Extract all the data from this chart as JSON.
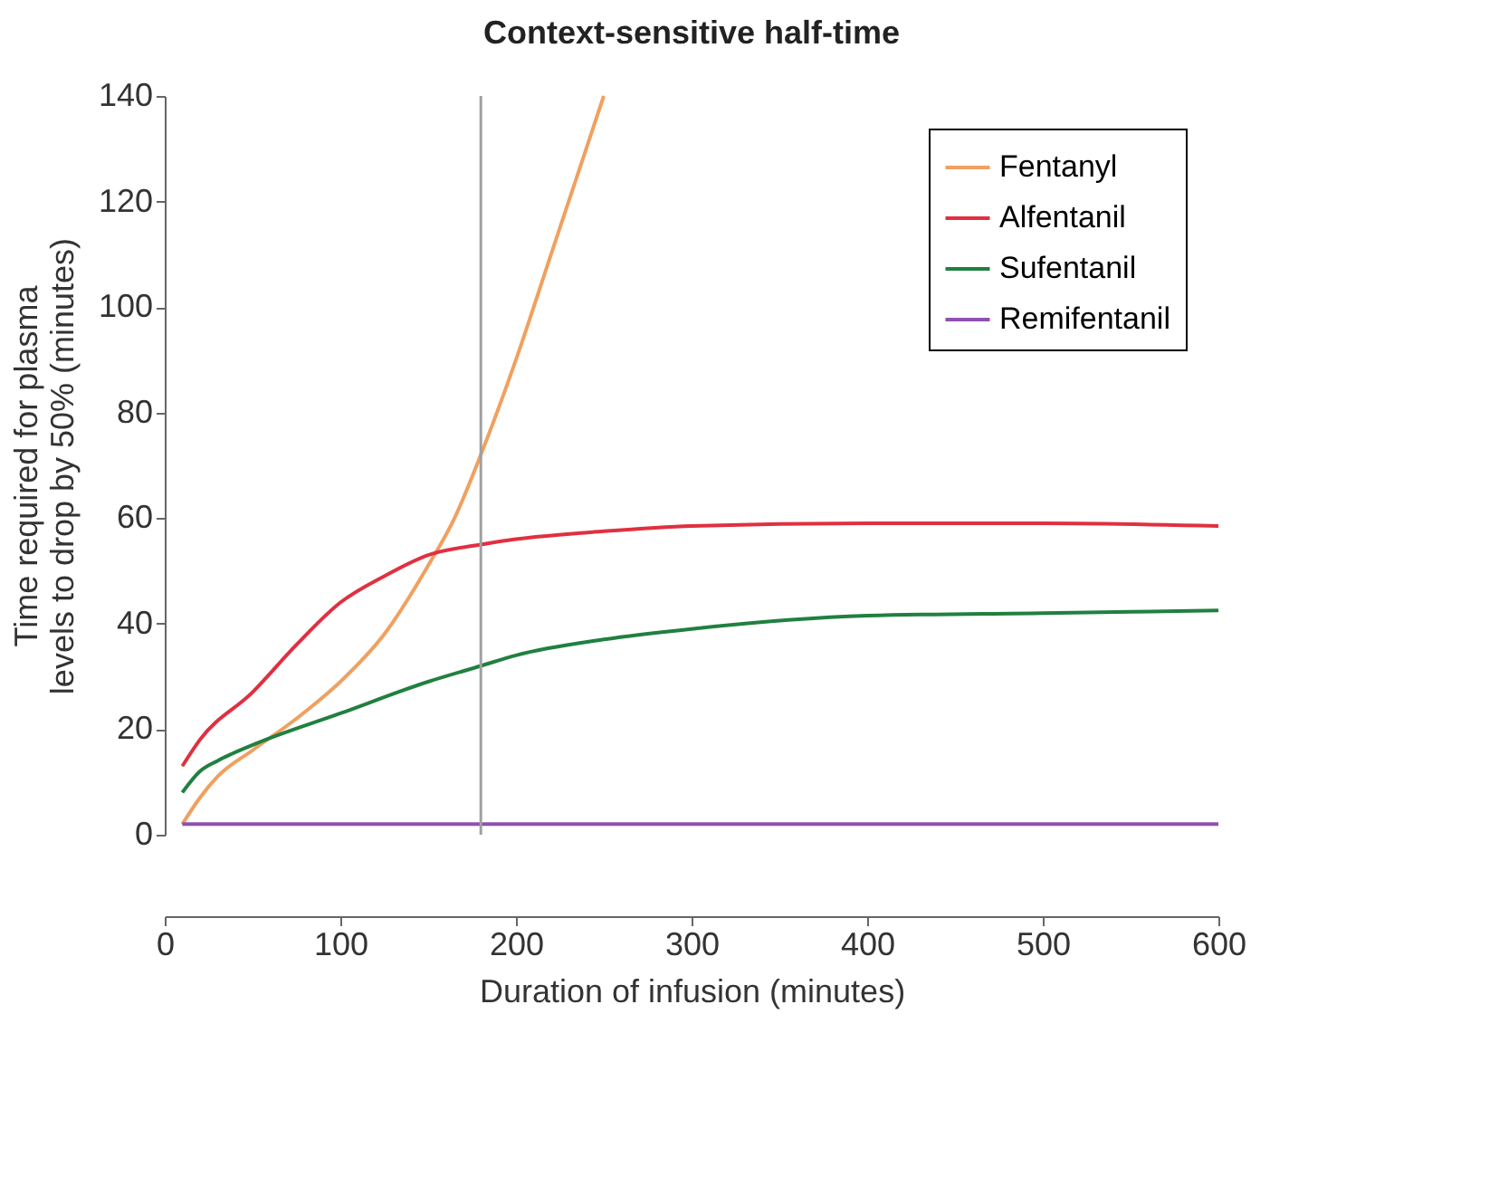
{
  "chart_data": {
    "type": "line",
    "title": "Context-sensitive half-time",
    "xlabel": "Duration of infusion (minutes)",
    "ylabel": "Time required for plasma\nlevels to drop by 50% (minutes)",
    "xlim": [
      0,
      600
    ],
    "xticks": [
      0,
      100,
      200,
      300,
      400,
      500,
      600
    ],
    "ylim": [
      0,
      140
    ],
    "yticks": [
      0,
      20,
      40,
      60,
      80,
      100,
      120,
      140
    ],
    "grid": false,
    "legend": "top right",
    "line_style": "solid",
    "marker": "none",
    "ref_lines": [
      {
        "axis": "x",
        "value": 180,
        "color": "#a0a0a0"
      }
    ],
    "series": [
      {
        "name": "Fentanyl",
        "color": "#f0a060",
        "x": [
          10,
          20,
          30,
          50,
          75,
          100,
          125,
          150,
          165,
          180,
          200,
          220,
          240,
          250
        ],
        "values": [
          2,
          7,
          11,
          16,
          22,
          29,
          38,
          51,
          60,
          72,
          90,
          110,
          130,
          140
        ]
      },
      {
        "name": "Alfentanil",
        "color": "#e03040",
        "x": [
          10,
          20,
          50,
          75,
          100,
          125,
          150,
          180,
          200,
          250,
          300,
          400,
          500,
          600
        ],
        "values": [
          13,
          18,
          27,
          36,
          44,
          49,
          53,
          55,
          56,
          57.5,
          58.5,
          59,
          59,
          58.5
        ]
      },
      {
        "name": "Sufentanil",
        "color": "#208040",
        "x": [
          10,
          20,
          30,
          50,
          100,
          150,
          180,
          200,
          250,
          300,
          400,
          500,
          600
        ],
        "values": [
          8,
          12,
          14,
          17,
          23,
          29,
          32,
          34,
          37,
          39,
          41.5,
          42,
          42.5
        ]
      },
      {
        "name": "Remifentanil",
        "color": "#9050b0",
        "x": [
          10,
          100,
          200,
          300,
          400,
          500,
          600
        ],
        "values": [
          2,
          2,
          2,
          2,
          2,
          2,
          2
        ]
      }
    ]
  }
}
